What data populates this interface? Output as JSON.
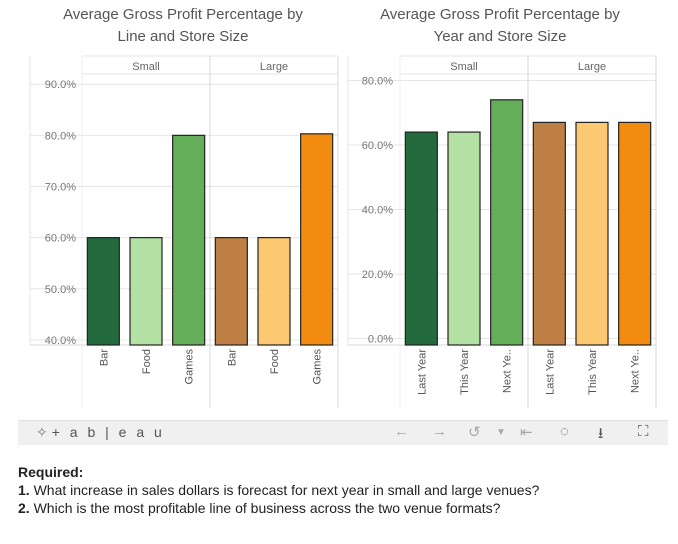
{
  "chart_data": [
    {
      "type": "bar",
      "title": "Average Gross Profit Percentage by Line and Store Size",
      "title_lines": [
        "Average Gross Profit Percentage by",
        "Line and Store Size"
      ],
      "panels": [
        "Small",
        "Large"
      ],
      "categories": [
        "Bar",
        "Food",
        "Games"
      ],
      "series": [
        {
          "name": "Small",
          "values": [
            60.0,
            60.0,
            80.0
          ]
        },
        {
          "name": "Large",
          "values": [
            60.0,
            60.0,
            80.3
          ]
        }
      ],
      "ylim": [
        39.0,
        92.0
      ],
      "yticks": [
        40,
        50,
        60,
        70,
        80,
        90
      ],
      "ytick_labels": [
        "40.0%",
        "50.0%",
        "60.0%",
        "70.0%",
        "80.0%",
        "90.0%"
      ],
      "colors": [
        [
          "#236b3d",
          "#b4e1a4",
          "#64ae5a"
        ],
        [
          "#be8044",
          "#fdc872",
          "#f28c10"
        ]
      ],
      "xlabel": "",
      "ylabel": ""
    },
    {
      "type": "bar",
      "title": "Average Gross Profit Percentage by Year and Store Size",
      "title_lines": [
        "Average Gross Profit Percentage by",
        "Year and Store Size"
      ],
      "panels": [
        "Small",
        "Large"
      ],
      "categories": [
        "Last Year",
        "This Year",
        "Next Ye.."
      ],
      "series": [
        {
          "name": "Small",
          "values": [
            64.0,
            64.0,
            74.0
          ]
        },
        {
          "name": "Large",
          "values": [
            67.0,
            67.0,
            67.0
          ]
        }
      ],
      "ylim": [
        -2.0,
        82.0
      ],
      "yticks": [
        0,
        20,
        40,
        60,
        80
      ],
      "ytick_labels": [
        "0.0%",
        "20.0%",
        "40.0%",
        "60.0%",
        "80.0%"
      ],
      "colors": [
        [
          "#236b3d",
          "#b4e1a4",
          "#64ae5a"
        ],
        [
          "#be8044",
          "#fdc872",
          "#f28c10"
        ]
      ],
      "xlabel": "",
      "ylabel": ""
    }
  ],
  "toolbar": {
    "logo": "+ a b | e a u",
    "logo_icon": "tableau-logo-icon",
    "buttons": [
      "undo-icon",
      "redo-icon",
      "revert-icon",
      "reset-icon",
      "share-icon",
      "download-icon",
      "fullscreen-icon"
    ]
  },
  "questions": {
    "heading": "Required:",
    "items": [
      {
        "num": "1.",
        "text": "What increase in sales dollars is forecast for next year in small and large venues?"
      },
      {
        "num": "2.",
        "text": "Which is the most profitable line of business across the two venue formats?"
      }
    ]
  }
}
